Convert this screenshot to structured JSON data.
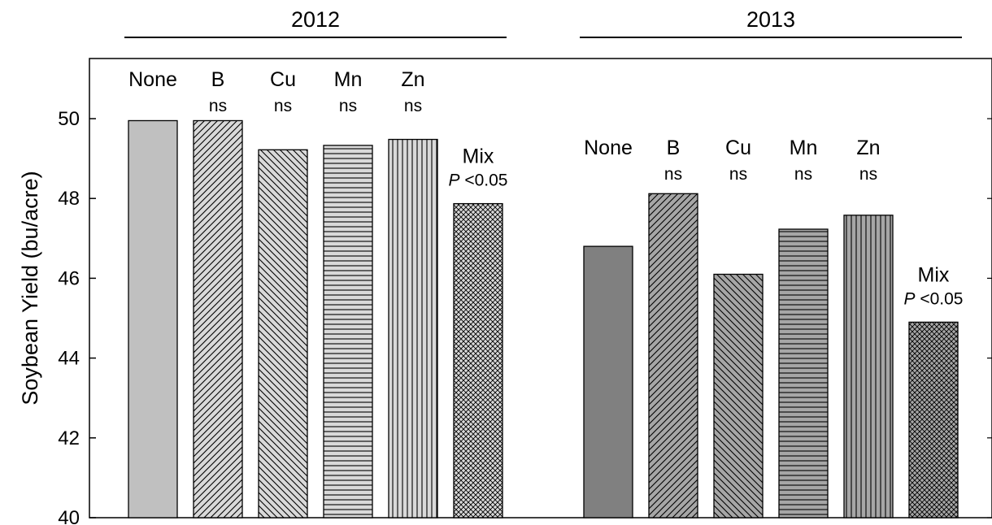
{
  "chart_data": {
    "type": "bar",
    "ylabel": "Soybean Yield (bu/acre)",
    "ylim": [
      40,
      51.5
    ],
    "yticks": [
      "40",
      "42",
      "44",
      "46",
      "48",
      "50"
    ],
    "grid": false,
    "groups": [
      {
        "year": "2012",
        "bars": [
          {
            "name": "None",
            "value": 49.95,
            "sig": "",
            "fill": "#c0c0c0",
            "pattern": "solid"
          },
          {
            "name": "B",
            "value": 49.95,
            "sig": "ns",
            "fill": "#d9d9d9",
            "pattern": "diag-right"
          },
          {
            "name": "Cu",
            "value": 49.22,
            "sig": "ns",
            "fill": "#d9d9d9",
            "pattern": "diag-left"
          },
          {
            "name": "Mn",
            "value": 49.33,
            "sig": "ns",
            "fill": "#d9d9d9",
            "pattern": "horizontal"
          },
          {
            "name": "Zn",
            "value": 49.48,
            "sig": "ns",
            "fill": "#d9d9d9",
            "pattern": "vertical"
          },
          {
            "name": "Mix",
            "value": 47.87,
            "sig_p": "P",
            "sig_rest": " <0.05",
            "fill": "#d9d9d9",
            "pattern": "crosshatch"
          }
        ]
      },
      {
        "year": "2013",
        "bars": [
          {
            "name": "None",
            "value": 46.8,
            "sig": "",
            "fill": "#808080",
            "pattern": "solid"
          },
          {
            "name": "B",
            "value": 48.12,
            "sig": "ns",
            "fill": "#a6a6a6",
            "pattern": "diag-right"
          },
          {
            "name": "Cu",
            "value": 46.1,
            "sig": "ns",
            "fill": "#a6a6a6",
            "pattern": "diag-left"
          },
          {
            "name": "Mn",
            "value": 47.23,
            "sig": "ns",
            "fill": "#a6a6a6",
            "pattern": "horizontal"
          },
          {
            "name": "Zn",
            "value": 47.58,
            "sig": "ns",
            "fill": "#a6a6a6",
            "pattern": "vertical"
          },
          {
            "name": "Mix",
            "value": 44.9,
            "sig_p": "P",
            "sig_rest": " <0.05",
            "fill": "#a6a6a6",
            "pattern": "crosshatch"
          }
        ]
      }
    ]
  }
}
